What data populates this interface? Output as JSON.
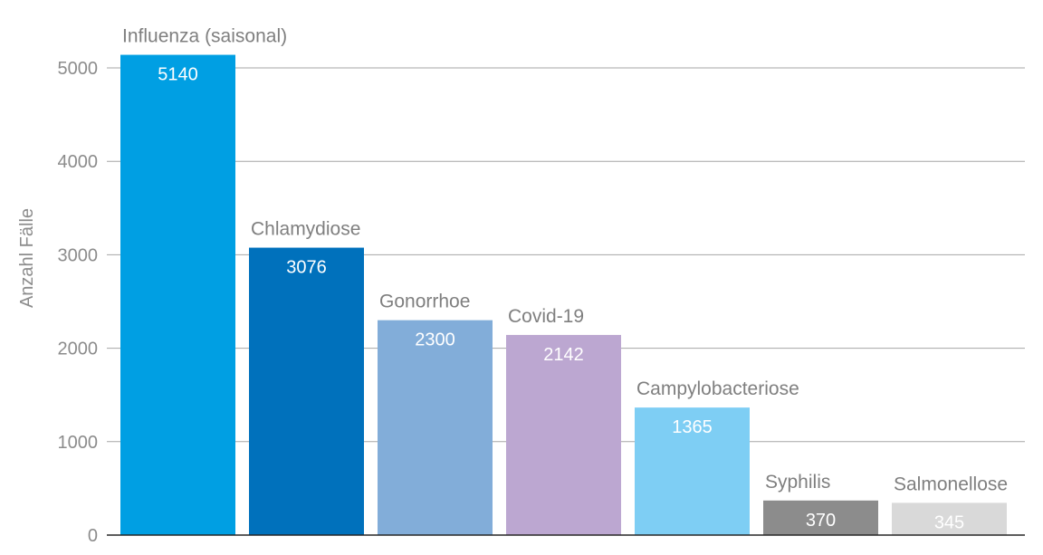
{
  "chart_data": {
    "type": "bar",
    "title": "",
    "xlabel": "",
    "ylabel": "Anzahl Fälle",
    "ylim": [
      0,
      5000
    ],
    "yticks": [
      0,
      1000,
      2000,
      3000,
      4000,
      5000
    ],
    "grid": true,
    "legend": "none",
    "categories": [
      "Influenza (saisonal)",
      "Chlamydiose",
      "Gonorrhoe",
      "Covid-19",
      "Campylobacteriose",
      "Syphilis",
      "Salmonellose"
    ],
    "values": [
      5140,
      3076,
      2300,
      2142,
      1365,
      370,
      345
    ],
    "colors": [
      "#009fe3",
      "#0071bc",
      "#82add9",
      "#bca7d1",
      "#7ecef4",
      "#8c8c8c",
      "#d9d9d9"
    ]
  }
}
